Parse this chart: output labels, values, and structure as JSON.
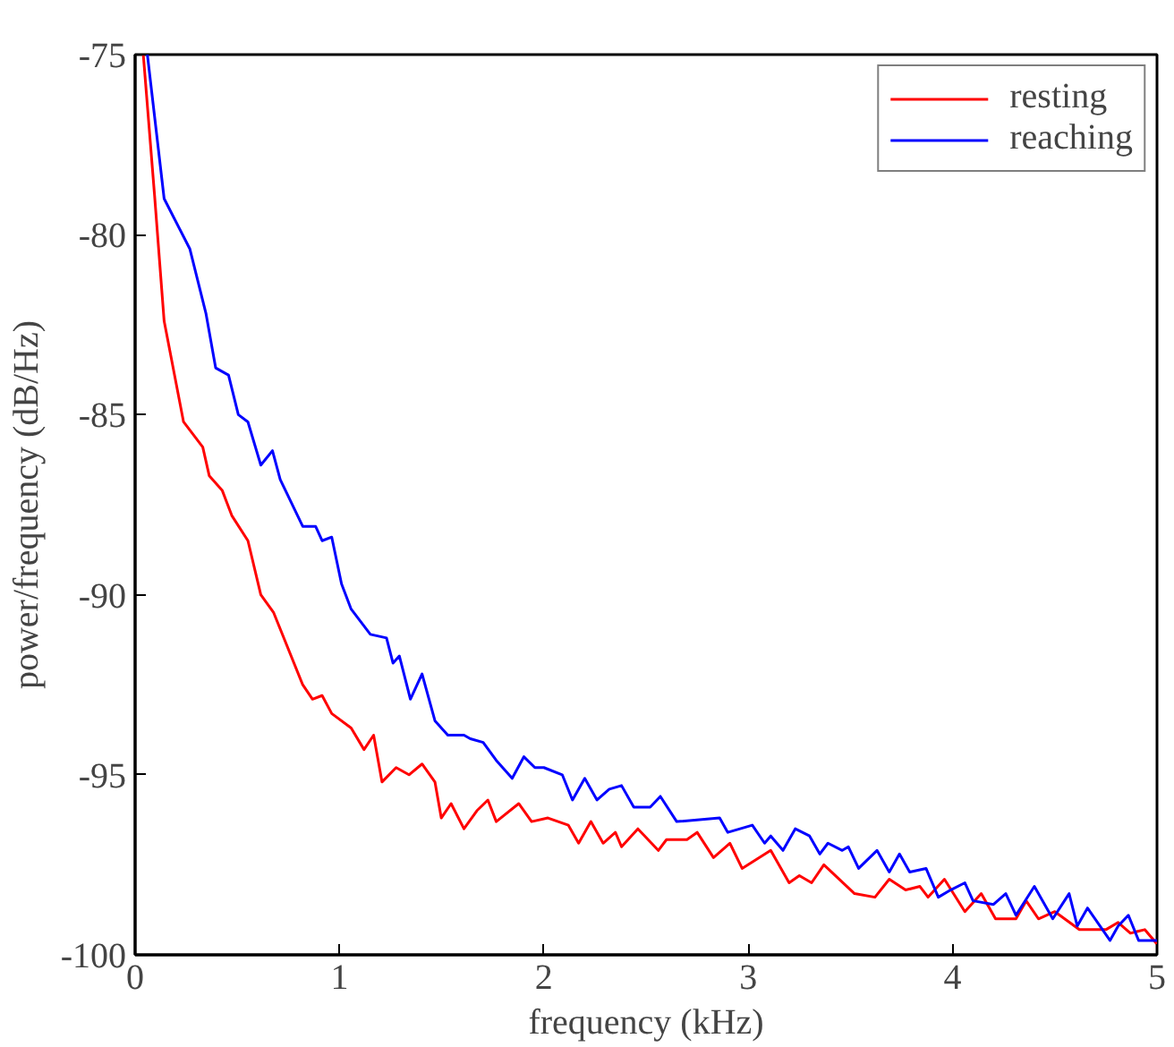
{
  "chart_data": {
    "type": "line",
    "xlabel": "frequency (kHz)",
    "ylabel": "power/frequency (dB/Hz)",
    "xlim": [
      0,
      5
    ],
    "xticks": [
      0,
      1,
      2,
      3,
      4,
      5
    ],
    "ylim": [
      -100,
      -75
    ],
    "yticks": [
      -100,
      -95,
      -90,
      -85,
      -80,
      -75
    ],
    "grid": false,
    "legend": "top right",
    "line_style": "solid",
    "marker": "none",
    "series": [
      {
        "name": "resting",
        "color": "#ff0000",
        "x": [
          0.04,
          0.095,
          0.142,
          0.237,
          0.331,
          0.363,
          0.426,
          0.473,
          0.552,
          0.615,
          0.678,
          0.82,
          0.868,
          0.915,
          0.962,
          1.057,
          1.12,
          1.167,
          1.208,
          1.277,
          1.34,
          1.404,
          1.467,
          1.498,
          1.546,
          1.609,
          1.672,
          1.726,
          1.767,
          1.877,
          1.94,
          2.02,
          2.12,
          2.17,
          2.23,
          2.29,
          2.35,
          2.38,
          2.46,
          2.56,
          2.6,
          2.7,
          2.75,
          2.83,
          2.91,
          2.97,
          3.11,
          3.2,
          3.25,
          3.31,
          3.37,
          3.52,
          3.62,
          3.69,
          3.77,
          3.84,
          3.88,
          3.96,
          4.06,
          4.14,
          4.21,
          4.31,
          4.36,
          4.42,
          4.5,
          4.62,
          4.75,
          4.81,
          4.87,
          4.94,
          5.0
        ],
        "values": [
          -75,
          -78.9,
          -82.4,
          -85.2,
          -85.9,
          -86.7,
          -87.1,
          -87.8,
          -88.5,
          -90.0,
          -90.5,
          -92.5,
          -92.9,
          -92.8,
          -93.3,
          -93.7,
          -94.3,
          -93.9,
          -95.2,
          -94.8,
          -95.0,
          -94.7,
          -95.2,
          -96.2,
          -95.8,
          -96.5,
          -96.0,
          -95.7,
          -96.3,
          -95.8,
          -96.3,
          -96.2,
          -96.4,
          -96.9,
          -96.3,
          -96.9,
          -96.6,
          -97.0,
          -96.5,
          -97.1,
          -96.8,
          -96.8,
          -96.6,
          -97.3,
          -96.9,
          -97.6,
          -97.1,
          -98.0,
          -97.8,
          -98.0,
          -97.5,
          -98.3,
          -98.4,
          -97.9,
          -98.2,
          -98.1,
          -98.4,
          -97.9,
          -98.8,
          -98.3,
          -99.0,
          -99.0,
          -98.5,
          -99.0,
          -98.8,
          -99.3,
          -99.3,
          -99.1,
          -99.4,
          -99.3,
          -99.7
        ]
      },
      {
        "name": "reaching",
        "color": "#0000ff",
        "x": [
          0.06,
          0.142,
          0.268,
          0.347,
          0.394,
          0.457,
          0.505,
          0.552,
          0.615,
          0.672,
          0.71,
          0.82,
          0.883,
          0.915,
          0.962,
          1.01,
          1.057,
          1.151,
          1.23,
          1.262,
          1.293,
          1.347,
          1.404,
          1.467,
          1.53,
          1.609,
          1.64,
          1.703,
          1.767,
          1.845,
          1.902,
          1.956,
          2.0,
          2.09,
          2.14,
          2.2,
          2.26,
          2.32,
          2.38,
          2.44,
          2.52,
          2.57,
          2.65,
          2.86,
          2.9,
          3.02,
          3.08,
          3.11,
          3.17,
          3.23,
          3.3,
          3.35,
          3.39,
          3.46,
          3.49,
          3.54,
          3.63,
          3.69,
          3.74,
          3.79,
          3.87,
          3.93,
          3.99,
          4.06,
          4.1,
          4.2,
          4.26,
          4.31,
          4.4,
          4.49,
          4.57,
          4.61,
          4.66,
          4.77,
          4.81,
          4.86,
          4.91,
          5.0
        ],
        "values": [
          -75,
          -79.0,
          -80.4,
          -82.2,
          -83.7,
          -83.9,
          -85.0,
          -85.2,
          -86.4,
          -86.0,
          -86.8,
          -88.1,
          -88.1,
          -88.5,
          -88.4,
          -89.7,
          -90.4,
          -91.1,
          -91.2,
          -91.9,
          -91.7,
          -92.9,
          -92.2,
          -93.5,
          -93.9,
          -93.9,
          -94.0,
          -94.1,
          -94.6,
          -95.1,
          -94.5,
          -94.8,
          -94.8,
          -95.0,
          -95.7,
          -95.1,
          -95.7,
          -95.4,
          -95.3,
          -95.9,
          -95.9,
          -95.6,
          -96.3,
          -96.2,
          -96.6,
          -96.4,
          -96.9,
          -96.7,
          -97.1,
          -96.5,
          -96.7,
          -97.2,
          -96.9,
          -97.1,
          -97.0,
          -97.6,
          -97.1,
          -97.7,
          -97.2,
          -97.7,
          -97.6,
          -98.4,
          -98.2,
          -98.0,
          -98.5,
          -98.6,
          -98.3,
          -98.9,
          -98.1,
          -99.0,
          -98.3,
          -99.2,
          -98.7,
          -99.6,
          -99.2,
          -98.9,
          -99.6,
          -99.6
        ]
      }
    ]
  }
}
